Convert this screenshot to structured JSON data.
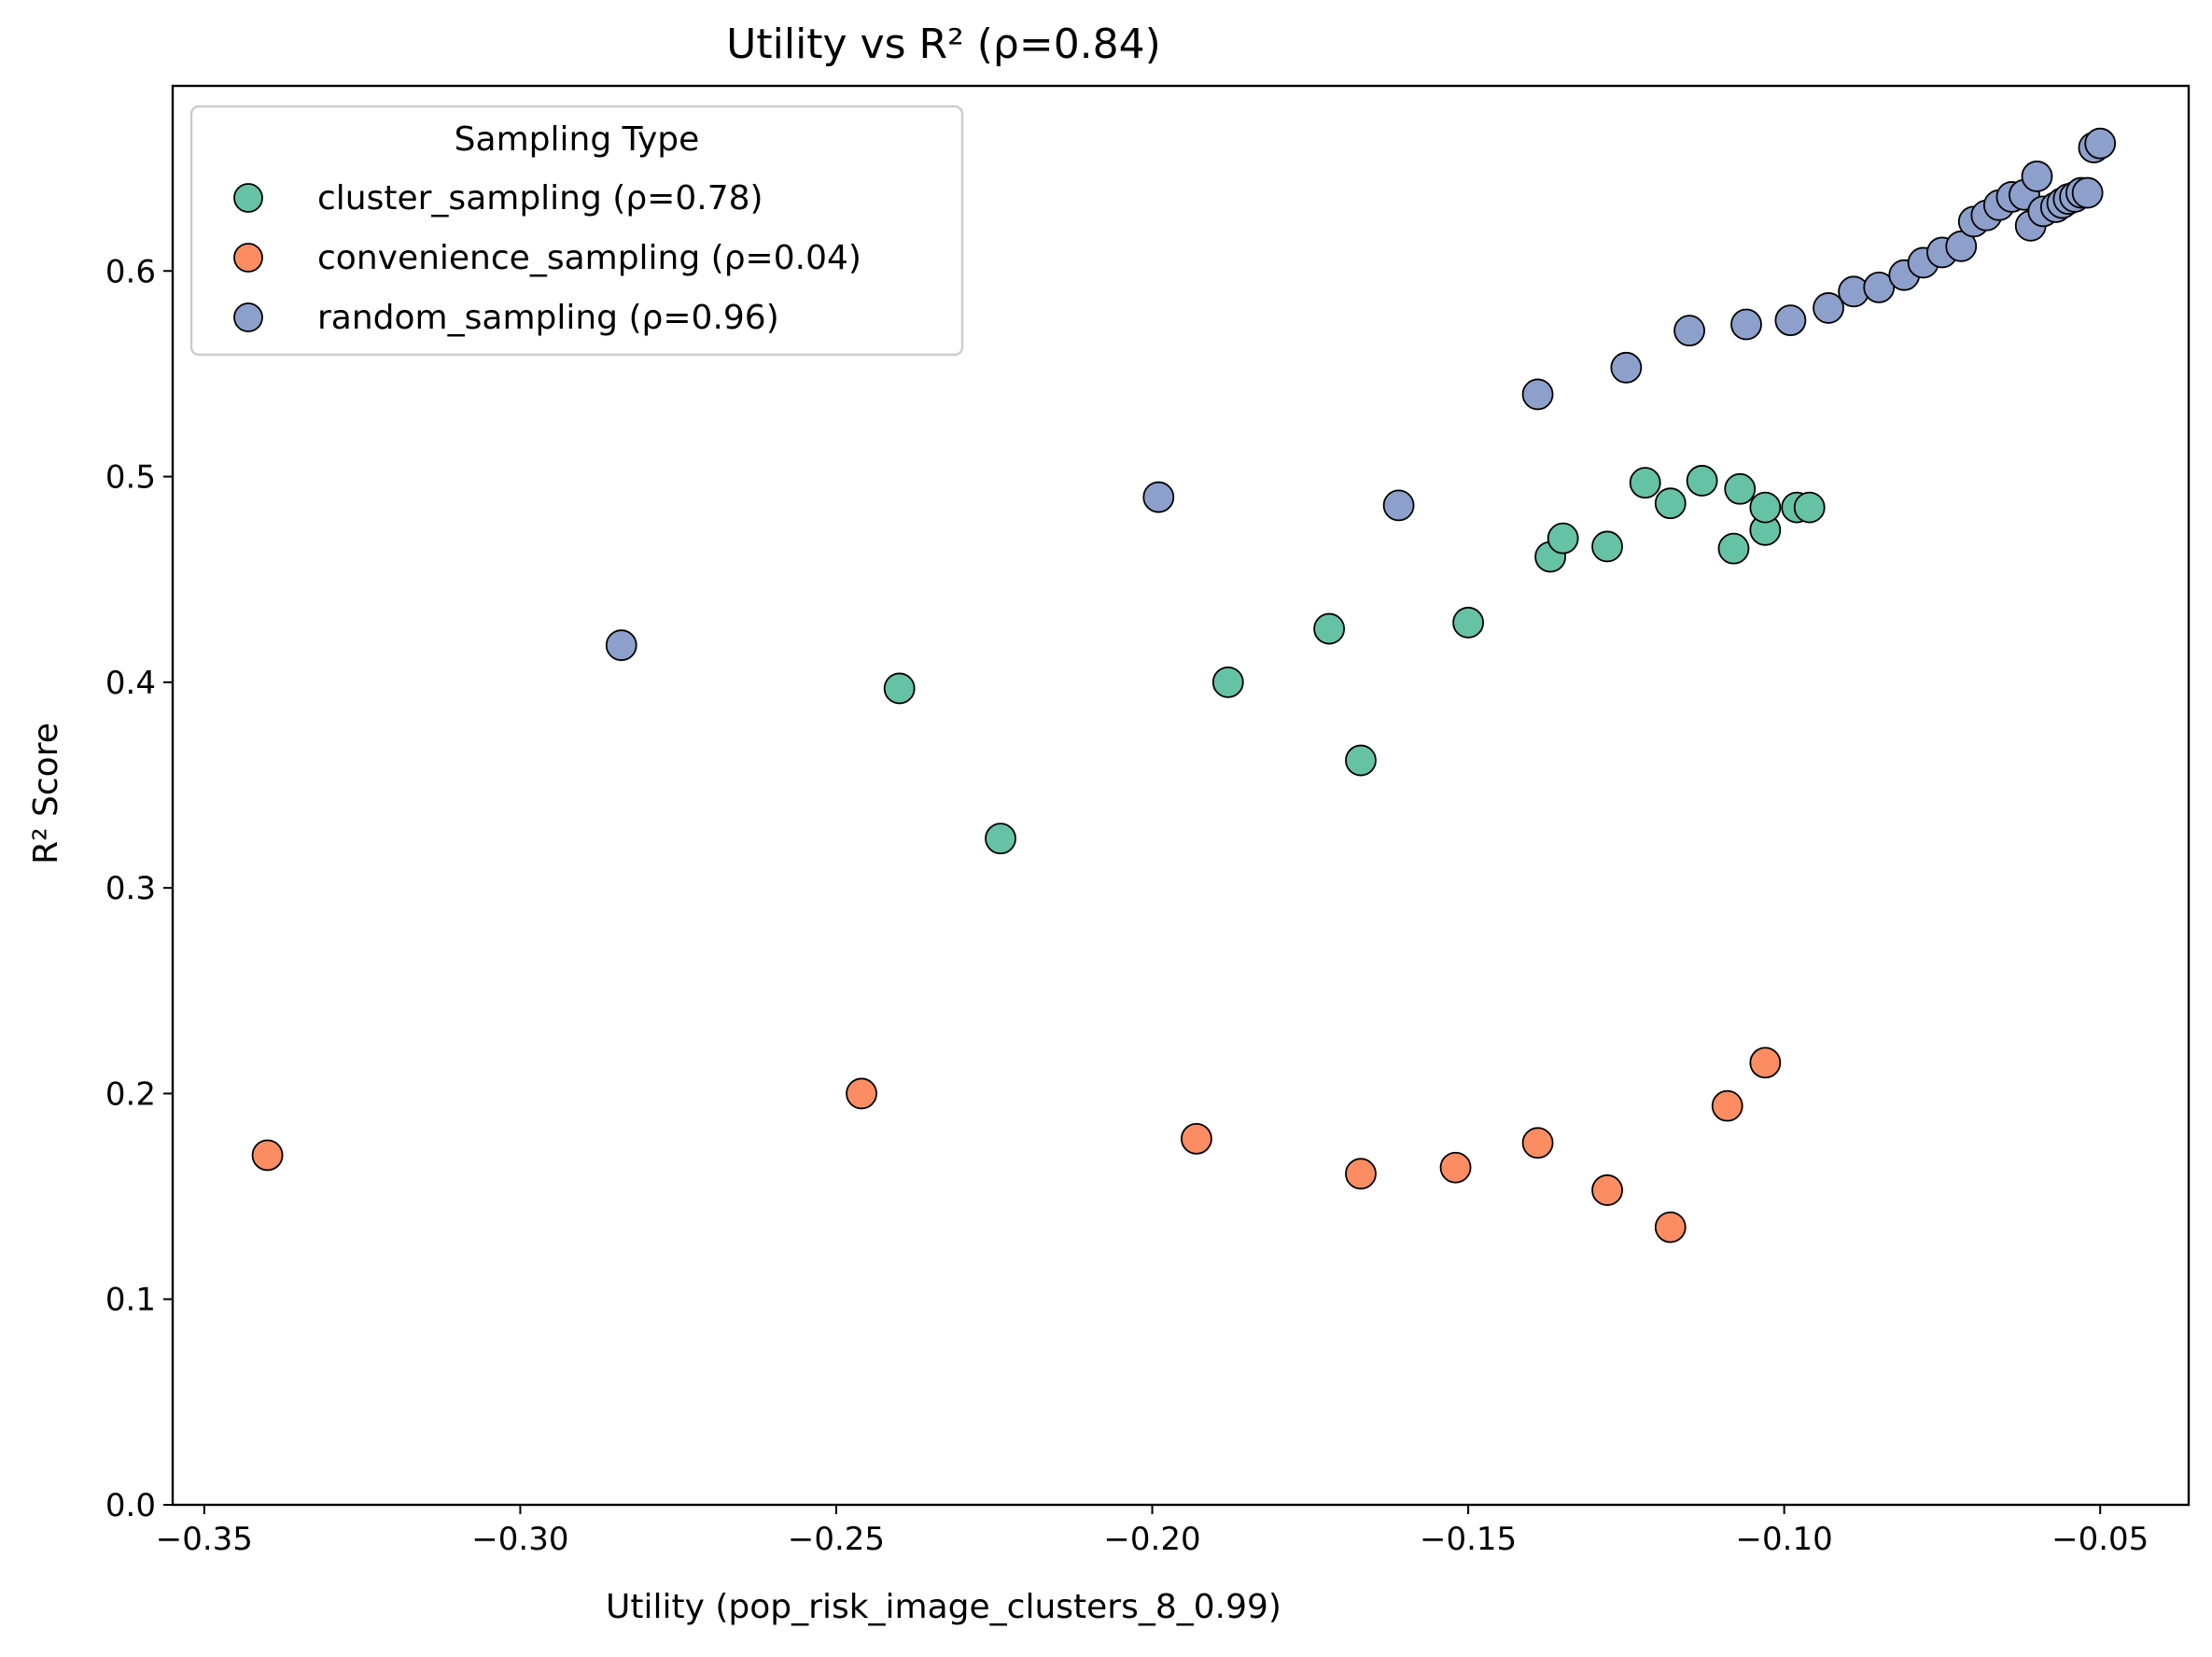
{
  "chart_data": {
    "type": "scatter",
    "title": "Utility vs R² (ρ=0.84)",
    "xlabel": "Utility (pop_risk_image_clusters_8_0.99)",
    "ylabel": "R² Score",
    "xlim": [
      -0.355,
      -0.036
    ],
    "ylim": [
      0.0,
      0.69
    ],
    "xticks": [
      -0.35,
      -0.3,
      -0.25,
      -0.2,
      -0.15,
      -0.1,
      -0.05
    ],
    "xtick_labels": [
      "−0.35",
      "−0.30",
      "−0.25",
      "−0.20",
      "−0.15",
      "−0.10",
      "−0.05"
    ],
    "yticks": [
      0.0,
      0.1,
      0.2,
      0.3,
      0.4,
      0.5,
      0.6
    ],
    "ytick_labels": [
      "0.0",
      "0.1",
      "0.2",
      "0.3",
      "0.4",
      "0.5",
      "0.6"
    ],
    "grid": false,
    "legend": {
      "title": "Sampling Type",
      "position": "upper-left",
      "entries": [
        "cluster_sampling (ρ=0.78)",
        "convenience_sampling (ρ=0.04)",
        "random_sampling (ρ=0.96)"
      ]
    },
    "series": [
      {
        "name": "cluster_sampling (ρ=0.78)",
        "color": "#66c2a5",
        "points": [
          [
            -0.24,
            0.397
          ],
          [
            -0.224,
            0.324
          ],
          [
            -0.188,
            0.4
          ],
          [
            -0.172,
            0.426
          ],
          [
            -0.167,
            0.362
          ],
          [
            -0.15,
            0.429
          ],
          [
            -0.137,
            0.461
          ],
          [
            -0.135,
            0.47
          ],
          [
            -0.128,
            0.466
          ],
          [
            -0.122,
            0.497
          ],
          [
            -0.118,
            0.487
          ],
          [
            -0.113,
            0.498
          ],
          [
            -0.108,
            0.465
          ],
          [
            -0.107,
            0.494
          ],
          [
            -0.103,
            0.474
          ],
          [
            -0.103,
            0.485
          ],
          [
            -0.098,
            0.485
          ],
          [
            -0.096,
            0.485
          ]
        ]
      },
      {
        "name": "convenience_sampling (ρ=0.04)",
        "color": "#fc8d62",
        "points": [
          [
            -0.34,
            0.17
          ],
          [
            -0.246,
            0.2
          ],
          [
            -0.193,
            0.178
          ],
          [
            -0.167,
            0.161
          ],
          [
            -0.152,
            0.164
          ],
          [
            -0.139,
            0.176
          ],
          [
            -0.128,
            0.153
          ],
          [
            -0.118,
            0.135
          ],
          [
            -0.109,
            0.194
          ],
          [
            -0.103,
            0.215
          ]
        ]
      },
      {
        "name": "random_sampling (ρ=0.96)",
        "color": "#8da0cb",
        "points": [
          [
            -0.284,
            0.418
          ],
          [
            -0.199,
            0.49
          ],
          [
            -0.161,
            0.486
          ],
          [
            -0.139,
            0.54
          ],
          [
            -0.125,
            0.553
          ],
          [
            -0.115,
            0.571
          ],
          [
            -0.106,
            0.574
          ],
          [
            -0.099,
            0.576
          ],
          [
            -0.093,
            0.582
          ],
          [
            -0.089,
            0.59
          ],
          [
            -0.085,
            0.592
          ],
          [
            -0.081,
            0.598
          ],
          [
            -0.078,
            0.604
          ],
          [
            -0.075,
            0.609
          ],
          [
            -0.072,
            0.612
          ],
          [
            -0.07,
            0.624
          ],
          [
            -0.068,
            0.627
          ],
          [
            -0.066,
            0.632
          ],
          [
            -0.064,
            0.636
          ],
          [
            -0.062,
            0.637
          ],
          [
            -0.061,
            0.622
          ],
          [
            -0.06,
            0.646
          ],
          [
            -0.059,
            0.629
          ],
          [
            -0.057,
            0.631
          ],
          [
            -0.056,
            0.633
          ],
          [
            -0.055,
            0.635
          ],
          [
            -0.054,
            0.636
          ],
          [
            -0.053,
            0.638
          ],
          [
            -0.052,
            0.638
          ],
          [
            -0.051,
            0.66
          ],
          [
            -0.05,
            0.662
          ]
        ]
      }
    ]
  }
}
